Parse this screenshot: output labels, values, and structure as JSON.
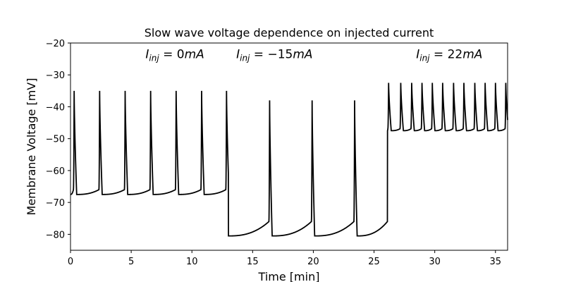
{
  "chart_data": {
    "type": "line",
    "title": "Slow wave voltage dependence on injected current",
    "xlabel": "Time [min]",
    "ylabel": "Membrane Voltage [mV]",
    "xlim": [
      0,
      36
    ],
    "ylim": [
      -85,
      -20
    ],
    "xticks": [
      0,
      5,
      10,
      15,
      20,
      25,
      30,
      35
    ],
    "yticks": [
      -20,
      -30,
      -40,
      -50,
      -60,
      -70,
      -80
    ],
    "line_color": "#000000",
    "annotations": [
      {
        "current": "0",
        "x": 8.6,
        "y": -24.8
      },
      {
        "current": "−15",
        "x": 16.8,
        "y": -24.8
      },
      {
        "current": "22",
        "x": 31.2,
        "y": -24.8
      }
    ],
    "segments": [
      {
        "t_start": 0.0,
        "t_end": 13.0,
        "baseline": -67,
        "peak": -35,
        "spike_times": [
          0.3,
          2.4,
          4.5,
          6.6,
          8.7,
          10.8,
          12.85
        ]
      },
      {
        "t_start": 13.0,
        "t_end": 26.1,
        "baseline": -80,
        "peak": -38,
        "spike_times": [
          16.4,
          19.9,
          23.4
        ]
      },
      {
        "t_start": 26.1,
        "t_end": 36.0,
        "baseline": -47,
        "peak": -32.5,
        "spike_times": [
          26.2,
          27.2,
          28.1,
          28.95,
          29.8,
          30.65,
          31.55,
          32.4,
          33.3,
          34.15,
          35.0,
          35.85
        ]
      }
    ]
  }
}
